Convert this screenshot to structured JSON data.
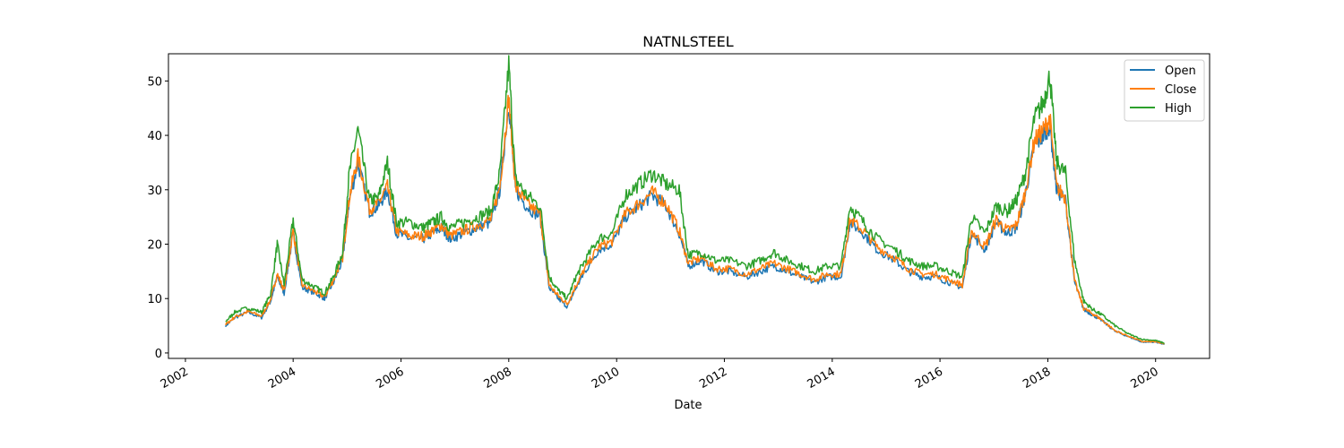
{
  "chart_data": {
    "type": "line",
    "title": "NATNLSTEEL",
    "xlabel": "Date",
    "ylabel": "",
    "xlim": [
      "2001-09-08",
      "2021-01-01"
    ],
    "ylim": [
      -1,
      55
    ],
    "x_ticks": [
      "2002",
      "2004",
      "2006",
      "2008",
      "2010",
      "2012",
      "2014",
      "2016",
      "2018",
      "2020"
    ],
    "y_ticks": [
      0,
      10,
      20,
      30,
      40,
      50
    ],
    "grid": false,
    "legend": "top-right",
    "x": [
      "2002-10-01",
      "2002-12-01",
      "2003-03-01",
      "2003-06-01",
      "2003-08-01",
      "2003-09-15",
      "2003-11-01",
      "2004-01-01",
      "2004-03-01",
      "2004-06-01",
      "2004-08-01",
      "2004-10-01",
      "2004-12-01",
      "2005-01-15",
      "2005-03-15",
      "2005-06-01",
      "2005-08-01",
      "2005-10-01",
      "2005-12-01",
      "2006-03-01",
      "2006-06-01",
      "2006-08-01",
      "2006-10-01",
      "2006-12-01",
      "2007-03-01",
      "2007-06-01",
      "2007-09-01",
      "2007-11-01",
      "2008-01-01",
      "2008-02-15",
      "2008-05-01",
      "2008-08-01",
      "2008-10-01",
      "2008-12-01",
      "2009-02-01",
      "2009-04-01",
      "2009-06-01",
      "2009-09-01",
      "2009-12-01",
      "2010-03-01",
      "2010-06-01",
      "2010-09-01",
      "2010-12-01",
      "2011-03-01",
      "2011-05-01",
      "2011-08-01",
      "2011-11-01",
      "2012-02-01",
      "2012-06-01",
      "2012-09-01",
      "2012-12-01",
      "2013-03-01",
      "2013-06-01",
      "2013-09-01",
      "2013-12-01",
      "2014-03-01",
      "2014-05-01",
      "2014-08-01",
      "2014-11-01",
      "2015-03-01",
      "2015-06-01",
      "2015-09-01",
      "2015-12-01",
      "2016-03-01",
      "2016-06-01",
      "2016-08-01",
      "2016-11-01",
      "2017-01-15",
      "2017-04-01",
      "2017-06-01",
      "2017-08-01",
      "2017-10-01",
      "2017-12-01",
      "2018-01-15",
      "2018-03-01",
      "2018-05-01",
      "2018-07-01",
      "2018-09-01",
      "2018-11-01",
      "2019-01-01",
      "2019-04-01",
      "2019-07-01",
      "2019-10-01",
      "2020-01-01",
      "2020-03-01"
    ],
    "series": [
      {
        "name": "Open",
        "color": "#1f77b4",
        "values": [
          5.0,
          6.5,
          7.5,
          6.5,
          9.5,
          14,
          11,
          22,
          12,
          11,
          10,
          13,
          17,
          28,
          35,
          26,
          27,
          30,
          22,
          21,
          21,
          22,
          23,
          21,
          22,
          23,
          24,
          30,
          46,
          30,
          27,
          25,
          12,
          10,
          8.5,
          12,
          15,
          19,
          20,
          25,
          27,
          29,
          27,
          22,
          16,
          17,
          15,
          15,
          14,
          15,
          16,
          15,
          14,
          13,
          14,
          14,
          24,
          22,
          19,
          17,
          15,
          14,
          14,
          13,
          12,
          22,
          19,
          24,
          22,
          23,
          29,
          38,
          40,
          42,
          30,
          28,
          13,
          8,
          7,
          6,
          4,
          3,
          2,
          2,
          1.6
        ]
      },
      {
        "name": "Close",
        "color": "#ff7f0e",
        "values": [
          5.2,
          6.6,
          7.6,
          6.8,
          9.8,
          14.5,
          11.5,
          22.5,
          12.5,
          11.2,
          10.3,
          13.5,
          17.5,
          28.5,
          36,
          26.5,
          27.5,
          30.5,
          22.5,
          21.5,
          21.5,
          22.5,
          23.5,
          21.5,
          22.5,
          23.5,
          24.5,
          30.5,
          47,
          30.5,
          27.5,
          25.5,
          12.5,
          10.5,
          9,
          12.5,
          15.5,
          19.5,
          20.5,
          25.5,
          27.5,
          29.5,
          27.5,
          22.5,
          16.5,
          17.5,
          15.5,
          15.5,
          14.5,
          15.5,
          16.5,
          15.5,
          14.5,
          13.5,
          14.5,
          14.5,
          24.5,
          22.5,
          19.5,
          17.5,
          15.5,
          14.5,
          14.5,
          13.5,
          12.5,
          22.5,
          19.5,
          24.5,
          22.5,
          23.5,
          29.5,
          39,
          41,
          43,
          30.5,
          28.5,
          13.2,
          8.2,
          7.2,
          6.1,
          4.1,
          3.1,
          2.1,
          2.05,
          1.65
        ]
      },
      {
        "name": "High",
        "color": "#2ca02c",
        "values": [
          5.8,
          7.5,
          8.3,
          7.5,
          10.8,
          20,
          12.5,
          24.5,
          13.5,
          12,
          11,
          14,
          18.5,
          33,
          41,
          28,
          28.5,
          35,
          24,
          24,
          23,
          24,
          25,
          23,
          24,
          25,
          26,
          33,
          53,
          32,
          29,
          27,
          14,
          11.5,
          10,
          14,
          17,
          21,
          22,
          29,
          31,
          33,
          31,
          30,
          18,
          18.5,
          17,
          17,
          16,
          17,
          18.5,
          17,
          16,
          15,
          16,
          16,
          27,
          24,
          21,
          19,
          17,
          16,
          16,
          15,
          14,
          25,
          22,
          27,
          26,
          28,
          33,
          43,
          46,
          51,
          35,
          33,
          17,
          9.5,
          8,
          7,
          5,
          3.5,
          2.5,
          2.3,
          1.8
        ]
      }
    ]
  }
}
